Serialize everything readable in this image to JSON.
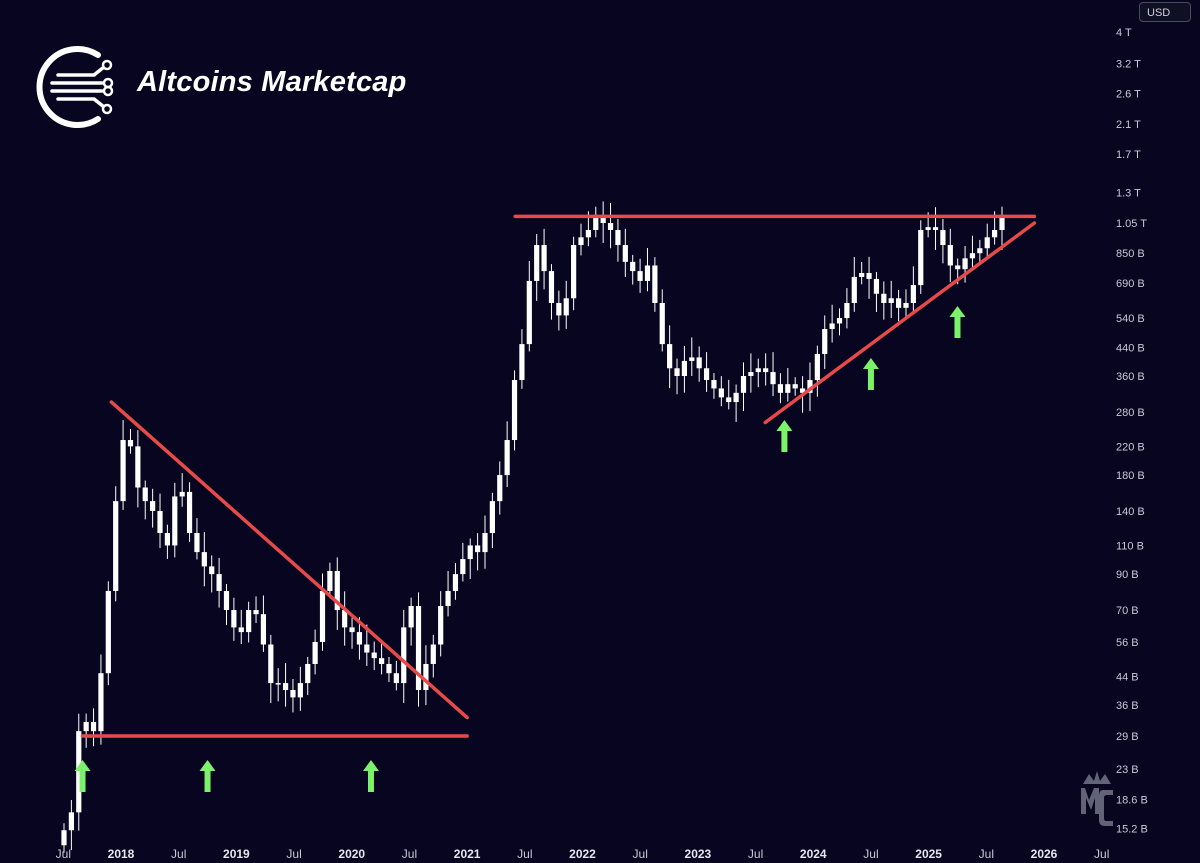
{
  "header": {
    "title": "Altcoins Marketcap",
    "currency": "USD"
  },
  "colors": {
    "background": "#07051f",
    "candle": "#ffffff",
    "trendline": "#e84a4a",
    "arrow": "#7cf26a",
    "axis_text": "#c9c9d6"
  },
  "icons": [
    "circuit-logo-icon",
    "mc-crown-watermark-icon",
    "up-arrow-icon"
  ],
  "chart_data": {
    "type": "candlestick",
    "scale": "log",
    "ylim": [
      "15.2B",
      "4T"
    ],
    "y_ticks": [
      "4 T",
      "3.2 T",
      "2.6 T",
      "2.1 T",
      "1.7 T",
      "1.3 T",
      "1.05 T",
      "850 B",
      "690 B",
      "540 B",
      "440 B",
      "360 B",
      "280 B",
      "220 B",
      "180 B",
      "140 B",
      "110 B",
      "90 B",
      "70 B",
      "56 B",
      "44 B",
      "36 B",
      "29 B",
      "23 B",
      "18.6 B",
      "15.2 B"
    ],
    "x_ticks": [
      "Jul",
      "2018",
      "Jul",
      "2019",
      "Jul",
      "2020",
      "Jul",
      "2021",
      "Jul",
      "2022",
      "Jul",
      "2023",
      "Jul",
      "2024",
      "Jul",
      "2025",
      "Jul",
      "2026",
      "Jul"
    ],
    "candles_close_billions": [
      15,
      17,
      30,
      32,
      30,
      45,
      80,
      150,
      230,
      220,
      165,
      150,
      140,
      120,
      110,
      155,
      160,
      120,
      105,
      95,
      90,
      80,
      70,
      62,
      60,
      70,
      68,
      55,
      42,
      42,
      40,
      38,
      42,
      48,
      56,
      80,
      92,
      70,
      62,
      60,
      55,
      52,
      50,
      48,
      45,
      42,
      62,
      72,
      40,
      48,
      55,
      72,
      80,
      90,
      100,
      110,
      105,
      120,
      150,
      180,
      230,
      350,
      450,
      700,
      900,
      750,
      600,
      550,
      620,
      900,
      950,
      1000,
      1100,
      1050,
      1000,
      900,
      800,
      750,
      700,
      780,
      600,
      450,
      380,
      360,
      400,
      410,
      380,
      350,
      330,
      310,
      300,
      320,
      360,
      370,
      380,
      370,
      340,
      320,
      340,
      330,
      320,
      350,
      420,
      500,
      520,
      540,
      600,
      720,
      740,
      710,
      640,
      600,
      620,
      580,
      600,
      680,
      1000,
      1020,
      1000,
      900,
      780,
      760,
      820,
      850,
      880,
      950,
      1000,
      1100
    ],
    "lines": [
      {
        "name": "",
        "kind": "horizontal_support",
        "value": "29 B",
        "from": "2017-09",
        "to": "2021-01"
      },
      {
        "name": "",
        "kind": "descending_resistance",
        "from_value": "300 B",
        "from": "2017-12",
        "to_value": "33 B",
        "to": "2021-01"
      },
      {
        "name": "",
        "kind": "horizontal_resistance",
        "value": "1.1 T",
        "from": "2021-06",
        "to": "2025-12"
      },
      {
        "name": "",
        "kind": "ascending_support",
        "from_value": "260 B",
        "from": "2023-08",
        "to_value": "1.05 T",
        "to": "2025-12"
      }
    ],
    "arrows": [
      "2017-09",
      "2018-10",
      "2020-03",
      "2023-10",
      "2024-07",
      "2025-04"
    ],
    "title": "Altcoins Marketcap",
    "xlabel": "",
    "ylabel": ""
  }
}
